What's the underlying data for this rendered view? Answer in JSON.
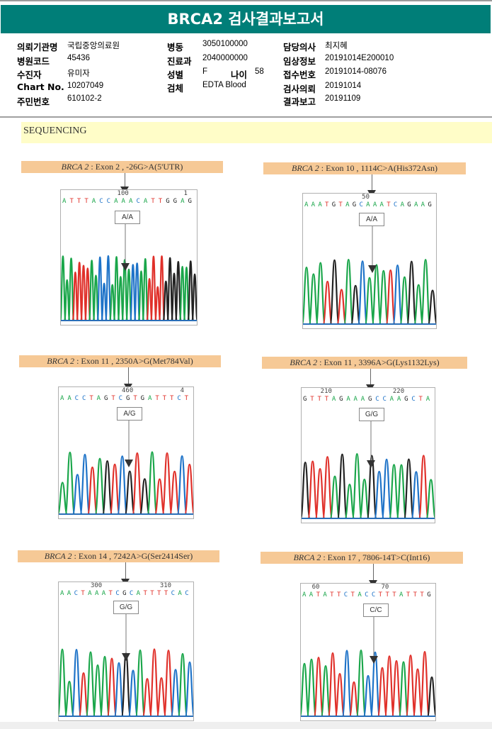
{
  "header": {
    "title": "BRCA2 검사결과보고서"
  },
  "info": {
    "col1": [
      {
        "label": "의뢰기관명",
        "value": "국립중앙의료원"
      },
      {
        "label": "병원코드",
        "value": "45436"
      },
      {
        "label": "수진자",
        "value": "유미자"
      },
      {
        "label": "Chart No.",
        "value": "10207049"
      },
      {
        "label": "주민번호",
        "value": "610102-2"
      }
    ],
    "col2": [
      {
        "label": "병동",
        "value": "3050100000"
      },
      {
        "label": "진료과",
        "value": "2040000000"
      },
      {
        "label": "성별",
        "value": "F"
      },
      {
        "label": "검체",
        "value": "EDTA Blood"
      }
    ],
    "age": {
      "label": "나이",
      "value": "58"
    },
    "col3": [
      {
        "label": "담당의사",
        "value": "최지혜"
      },
      {
        "label": "임상정보",
        "value": "20191014E200010"
      },
      {
        "label": "접수번호",
        "value": "20191014-08076"
      },
      {
        "label": "검사의뢰",
        "value": "20191014"
      },
      {
        "label": "결과보고",
        "value": "20191109"
      }
    ]
  },
  "section": {
    "title": "SEQUENCING"
  },
  "colors": {
    "A": "#1aa64a",
    "C": "#1e73c8",
    "G": "#222222",
    "T": "#e0302a",
    "banner": "#007e78",
    "title_bg": "#f6c996",
    "section_bg": "#fffdc8"
  },
  "panels": [
    {
      "gene": "BRCA 2",
      "desc": " : Exon 2 , -26G>A(5'UTR)",
      "genotype": "A/A",
      "sequence": "ATTTACCAAACATTGGAG",
      "positions": [
        {
          "label": "100",
          "index": 8
        },
        {
          "label": "1",
          "index": 17
        }
      ],
      "peaks": "AAATTTTAACCCAAAAACCAATTTTGGGGAAGG"
    },
    {
      "gene": "BRCA 2",
      "desc": " : Exon 10 , 1114C>A(His372Asn)",
      "genotype": "A/A",
      "sequence": "AAATGTAGCAAATCAGAAG",
      "positions": [
        {
          "label": "50",
          "index": 9
        }
      ],
      "peaks": "AAATGTAGCAAATCAGAAG"
    },
    {
      "gene": "BRCA 2",
      "desc": " : Exon 11 , 2350A>G(Met784Val)",
      "genotype": "A/G",
      "sequence": "AACCTAGTCGTGATTTCT",
      "positions": [
        {
          "label": "460",
          "index": 9
        },
        {
          "label": "4",
          "index": 17
        }
      ],
      "peaks": "AACCTAGTCGTGATTTCT"
    },
    {
      "gene": "BRCA 2",
      "desc": " : Exon 11 , 3396A>G(Lys1132Lys)",
      "genotype": "G/G",
      "sequence": "GTTTAGAAAGCCAAGCTA",
      "positions": [
        {
          "label": "210",
          "index": 3
        },
        {
          "label": "220",
          "index": 13
        }
      ],
      "peaks": "GTTTAGAAAGCCAAGCTA"
    },
    {
      "gene": "BRCA 2",
      "desc": " : Exon 14 , 7242A>G(Ser2414Ser)",
      "genotype": "G/G",
      "sequence": "AACTAAATCGCATTTTCAC",
      "positions": [
        {
          "label": "300",
          "index": 5
        },
        {
          "label": "310",
          "index": 15
        }
      ],
      "peaks": "AACTAAATCGCATTTTCAC"
    },
    {
      "gene": "BRCA 2",
      "desc": " : Exon 17 , 7806-14T>C(Int16)",
      "genotype": "C/C",
      "sequence": "AATATTCTACCTTTATTTG",
      "positions": [
        {
          "label": "60",
          "index": 2
        },
        {
          "label": "70",
          "index": 12
        }
      ],
      "peaks": "AATATTCTACCTTTATTTG"
    }
  ]
}
